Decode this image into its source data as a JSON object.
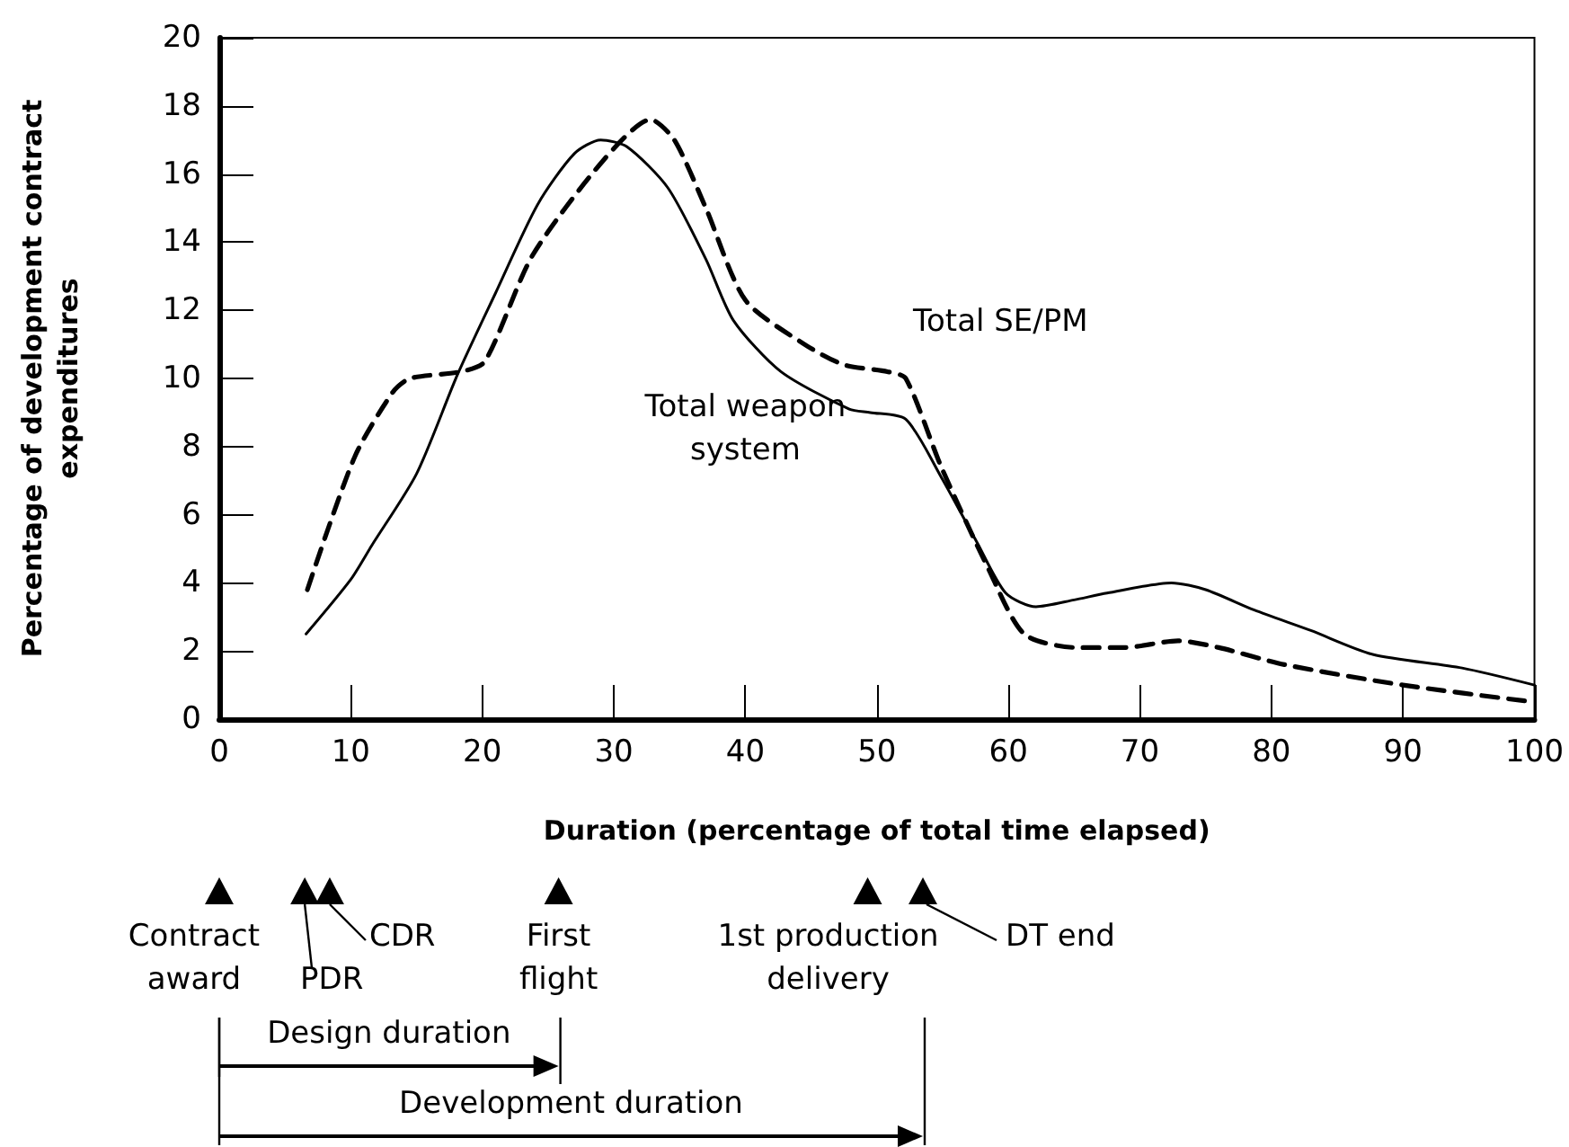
{
  "chart_data": {
    "type": "line",
    "xlabel": "Duration (percentage of total time elapsed)",
    "ylabel": "Percentage of development contract expenditures",
    "xlim": [
      0,
      100
    ],
    "xticks": [
      0,
      10,
      20,
      30,
      40,
      50,
      60,
      70,
      80,
      90,
      100
    ],
    "ylim": [
      0,
      20
    ],
    "yticks": [
      0,
      2,
      4,
      6,
      8,
      10,
      12,
      14,
      16,
      18,
      20
    ],
    "grid": false,
    "marker": "none",
    "series": [
      {
        "name": "Total weapon system",
        "color": "#000000",
        "line_style": "solid",
        "x": [
          6.6,
          10,
          11.6,
          15,
          18.1,
          21,
          24.2,
          27,
          29,
          31,
          34.1,
          37,
          39.1,
          42.7,
          47.9,
          49.5,
          52.2,
          54.9,
          57.6,
          59.8,
          62.1,
          65,
          67.5,
          72.4,
          75,
          78.7,
          83,
          87.7,
          94.5,
          100
        ],
        "values": [
          2.5,
          4.1,
          5.1,
          7.2,
          10.1,
          12.5,
          15.1,
          16.6,
          17.0,
          16.8,
          15.6,
          13.5,
          11.7,
          10.2,
          9.1,
          9.0,
          8.8,
          7.1,
          5.2,
          3.7,
          3.3,
          3.5,
          3.7,
          4.0,
          3.8,
          3.2,
          2.6,
          1.9,
          1.5,
          1.0
        ]
      },
      {
        "name": "Total SE/PM",
        "color": "#000000",
        "line_style": "dashed",
        "x": [
          6.7,
          10.3,
          13.2,
          14.5,
          18.4,
          20.2,
          23.8,
          29.2,
          32.8,
          34.6,
          37,
          40,
          44.5,
          47.5,
          50.8,
          52.2,
          54.9,
          58.5,
          61.2,
          65.2,
          68.8,
          72.9,
          76,
          81,
          90,
          100
        ],
        "values": [
          3.8,
          7.7,
          9.6,
          10.0,
          10.2,
          10.5,
          13.6,
          16.4,
          17.6,
          17.0,
          15.0,
          12.3,
          11.0,
          10.4,
          10.2,
          10.0,
          7.4,
          4.4,
          2.5,
          2.1,
          2.1,
          2.3,
          2.1,
          1.6,
          1.0,
          0.5
        ]
      }
    ],
    "annotations": [
      "Contract award",
      "PDR",
      "CDR",
      "First flight",
      "1st production delivery",
      "DT end",
      "Design duration",
      "Development duration"
    ]
  }
}
